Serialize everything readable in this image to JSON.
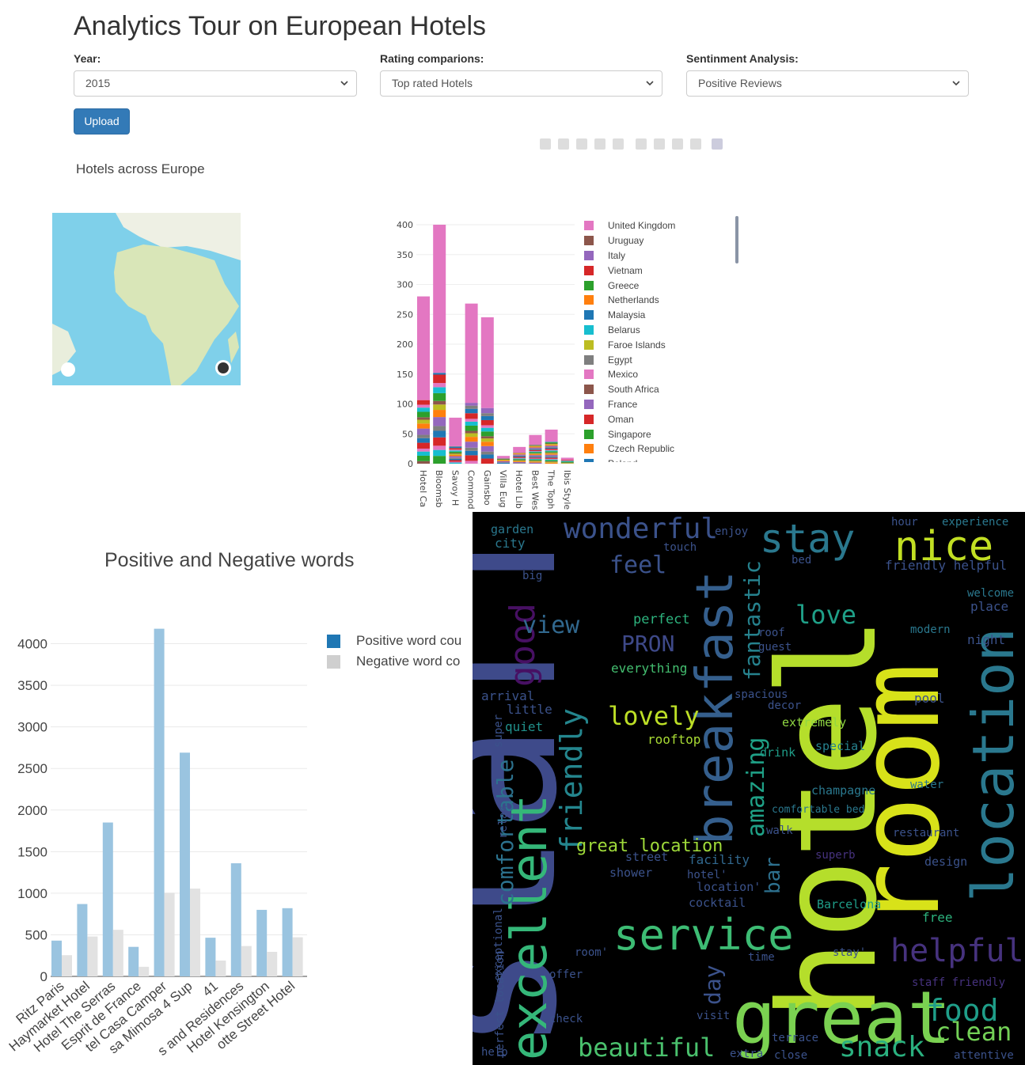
{
  "title": "Analytics Tour on European Hotels",
  "filters": {
    "year": {
      "label": "Year:",
      "value": "2015"
    },
    "rating": {
      "label": "Rating comparions:",
      "value": "Top rated Hotels"
    },
    "sentiment": {
      "label": "Sentinment Analysis:",
      "value": "Positive Reviews"
    }
  },
  "upload_label": "Upload",
  "map_title": "Hotels across Europe",
  "icons": [
    "camera-icon",
    "zoom-icon",
    "pan-icon",
    "box-select-icon",
    "lasso-icon",
    "zoom-in-icon",
    "zoom-out-icon",
    "autoscale-icon",
    "reset-icon",
    "plotly-logo-icon"
  ],
  "colors": {
    "pink": "#e377c2",
    "brown": "#8c564b",
    "purple": "#9467bd",
    "red": "#d62728",
    "green": "#2ca02c",
    "orange": "#ff7f0e",
    "blue": "#1f77b4",
    "cyan": "#17becf",
    "olive": "#bcbd22",
    "gray": "#7f7f7f"
  },
  "chart_data": [
    {
      "type": "bar",
      "stacked": true,
      "categories": [
        "Hotel Ca",
        "Bloomsb",
        "Savoy H",
        "Commod",
        "Gainsbo",
        "Villa Eug",
        "Hotel Lib",
        "Best Wes",
        "The Toph",
        "Ibis Style"
      ],
      "totals": [
        280,
        400,
        77,
        268,
        245,
        13,
        28,
        48,
        57,
        10
      ],
      "ylim": [
        0,
        400
      ],
      "yticks": [
        0,
        50,
        100,
        150,
        200,
        250,
        300,
        350,
        400
      ],
      "legend": [
        "United Kingdom",
        "Uruguay",
        "Italy",
        "Vietnam",
        "Greece",
        "Netherlands",
        "Malaysia",
        "Belarus",
        "Faroe Islands",
        "Egypt",
        "Mexico",
        "South Africa",
        "France",
        "Oman",
        "Singapore",
        "Czech Republic",
        "Poland"
      ]
    },
    {
      "type": "bar",
      "title": "Positive and Negative words",
      "categories": [
        "Ritz Paris",
        "Haymarket Hotel",
        "Hotel The Serras",
        "Esprit de France",
        "tel Casa Camper",
        "sa Mimosa 4 Sup",
        "41",
        "s and Residences",
        "Hotel Kensington",
        "otte Street Hotel"
      ],
      "series": [
        {
          "name": "Positive word cou",
          "color": "#9ac4e0",
          "values": [
            430,
            870,
            1850,
            355,
            4180,
            2690,
            465,
            1360,
            800,
            820
          ]
        },
        {
          "name": "Negative word co",
          "color": "#e2e2e2",
          "values": [
            255,
            480,
            560,
            115,
            1005,
            1055,
            190,
            365,
            295,
            470
          ]
        }
      ],
      "ylim": [
        0,
        4300
      ],
      "yticks": [
        0,
        500,
        1000,
        1500,
        2000,
        2500,
        3000,
        3500,
        4000
      ]
    }
  ],
  "wordcloud": [
    {
      "t": "staff",
      "x": 700,
      "y": 1330,
      "s": 230,
      "c": "#3e4a8a",
      "r": -90
    },
    {
      "t": "hotel",
      "x": 1105,
      "y": 1290,
      "s": 170,
      "c": "#b5de2b",
      "r": -90
    },
    {
      "t": "room",
      "x": 1185,
      "y": 1175,
      "s": 140,
      "c": "#d8e219",
      "r": -90
    },
    {
      "t": "great",
      "x": 925,
      "y": 1318,
      "s": 92,
      "c": "#7ad151",
      "r": 0
    },
    {
      "t": "location",
      "x": 1280,
      "y": 1140,
      "s": 72,
      "c": "#2a788e",
      "r": -90
    },
    {
      "t": "breakfast",
      "x": 925,
      "y": 1068,
      "s": 64,
      "c": "#355f8d",
      "r": -90
    },
    {
      "t": "excellent",
      "x": 690,
      "y": 1340,
      "s": 62,
      "c": "#35b779",
      "r": -90
    },
    {
      "t": "service",
      "x": 775,
      "y": 1200,
      "s": 54,
      "c": "#3dbc74",
      "r": 0
    },
    {
      "t": "nice",
      "x": 1130,
      "y": 708,
      "s": 52,
      "c": "#c2df23",
      "r": 0
    },
    {
      "t": "stay",
      "x": 960,
      "y": 698,
      "s": 50,
      "c": "#2a788e",
      "r": 0
    },
    {
      "t": "helpful",
      "x": 1125,
      "y": 1215,
      "s": 40,
      "c": "#46327e",
      "r": 0
    },
    {
      "t": "good",
      "x": 675,
      "y": 868,
      "s": 44,
      "c": "#471063",
      "r": -90
    },
    {
      "t": "friendly",
      "x": 735,
      "y": 1078,
      "s": 38,
      "c": "#24868e",
      "r": -90
    },
    {
      "t": "wonderful",
      "x": 712,
      "y": 680,
      "s": 36,
      "c": "#3b528b",
      "r": 0
    },
    {
      "t": "amazing",
      "x": 965,
      "y": 1058,
      "s": 30,
      "c": "#1fa187",
      "r": -90
    },
    {
      "t": "fantastic",
      "x": 960,
      "y": 860,
      "s": 28,
      "c": "#26828e",
      "r": -90
    },
    {
      "t": "food",
      "x": 1170,
      "y": 1290,
      "s": 38,
      "c": "#1f9e89",
      "r": 0
    },
    {
      "t": "clean",
      "x": 1182,
      "y": 1315,
      "s": 32,
      "c": "#73d056",
      "r": 0
    },
    {
      "t": "snack",
      "x": 1060,
      "y": 1335,
      "s": 36,
      "c": "#2ab07f",
      "r": 0
    },
    {
      "t": "beautiful",
      "x": 730,
      "y": 1335,
      "s": 32,
      "c": "#4ac16d",
      "r": 0
    },
    {
      "t": "comfortable",
      "x": 648,
      "y": 1145,
      "s": 28,
      "c": "#2c728e",
      "r": -90
    },
    {
      "t": "lovely",
      "x": 768,
      "y": 916,
      "s": 32,
      "c": "#bddf26",
      "r": 0
    },
    {
      "t": "love",
      "x": 1005,
      "y": 788,
      "s": 32,
      "c": "#1fa088",
      "r": 0
    },
    {
      "t": "view",
      "x": 660,
      "y": 800,
      "s": 30,
      "c": "#31688e",
      "r": 0
    },
    {
      "t": "feel",
      "x": 770,
      "y": 724,
      "s": 30,
      "c": "#3b528b",
      "r": 0
    },
    {
      "t": "PRON",
      "x": 785,
      "y": 823,
      "s": 28,
      "c": "#3e4989",
      "r": 0
    },
    {
      "t": "great location",
      "x": 728,
      "y": 1076,
      "s": 22,
      "c": "#9fda3a",
      "r": 0
    },
    {
      "t": "day",
      "x": 910,
      "y": 1270,
      "s": 28,
      "c": "#3b528b",
      "r": -90
    },
    {
      "t": "bar",
      "x": 985,
      "y": 1130,
      "s": 26,
      "c": "#2d708e",
      "r": -90
    },
    {
      "t": "perfect",
      "x": 800,
      "y": 788,
      "s": 17,
      "c": "#2db27d",
      "r": 0
    },
    {
      "t": "everything",
      "x": 772,
      "y": 850,
      "s": 16,
      "c": "#44bf70",
      "r": 0
    },
    {
      "t": "arrival",
      "x": 608,
      "y": 885,
      "s": 16,
      "c": "#3b528b",
      "r": 0
    },
    {
      "t": "little",
      "x": 640,
      "y": 902,
      "s": 16,
      "c": "#3b528b",
      "r": 0
    },
    {
      "t": "quiet",
      "x": 638,
      "y": 924,
      "s": 16,
      "c": "#21918c",
      "r": 0
    },
    {
      "t": "rooftop",
      "x": 818,
      "y": 940,
      "s": 16,
      "c": "#a8db34",
      "r": 0
    },
    {
      "t": "extremely",
      "x": 988,
      "y": 918,
      "s": 15,
      "c": "#90d743",
      "r": 0
    },
    {
      "t": "special",
      "x": 1030,
      "y": 948,
      "s": 15,
      "c": "#26828e",
      "r": 0
    },
    {
      "t": "drink",
      "x": 960,
      "y": 956,
      "s": 15,
      "c": "#1f9e89",
      "r": 0
    },
    {
      "t": "champagne",
      "x": 1025,
      "y": 1004,
      "s": 15,
      "c": "#2a788e",
      "r": 0
    },
    {
      "t": "comfortable bed",
      "x": 975,
      "y": 1027,
      "s": 13,
      "c": "#2a788e",
      "r": 0
    },
    {
      "t": "restaurant",
      "x": 1128,
      "y": 1057,
      "s": 14,
      "c": "#3b528b",
      "r": 0
    },
    {
      "t": "design",
      "x": 1168,
      "y": 1094,
      "s": 15,
      "c": "#3b528b",
      "r": 0
    },
    {
      "t": "facility",
      "x": 870,
      "y": 1092,
      "s": 16,
      "c": "#31688e",
      "r": 0
    },
    {
      "t": "street",
      "x": 790,
      "y": 1088,
      "s": 15,
      "c": "#3b528b",
      "r": 0
    },
    {
      "t": "shower",
      "x": 770,
      "y": 1108,
      "s": 15,
      "c": "#3b528b",
      "r": 0
    },
    {
      "t": "cocktail",
      "x": 870,
      "y": 1146,
      "s": 15,
      "c": "#3b528b",
      "r": 0
    },
    {
      "t": "location'",
      "x": 880,
      "y": 1126,
      "s": 15,
      "c": "#3b528b",
      "r": 0
    },
    {
      "t": "Barcelona",
      "x": 1032,
      "y": 1148,
      "s": 15,
      "c": "#1f9e89",
      "r": 0
    },
    {
      "t": "free",
      "x": 1165,
      "y": 1165,
      "s": 16,
      "c": "#2db27d",
      "r": 0
    },
    {
      "t": "pool",
      "x": 1155,
      "y": 888,
      "s": 16,
      "c": "#3b528b",
      "r": 0
    },
    {
      "t": "water",
      "x": 1150,
      "y": 996,
      "s": 14,
      "c": "#2a788e",
      "r": 0
    },
    {
      "t": "modern",
      "x": 1150,
      "y": 800,
      "s": 14,
      "c": "#2a788e",
      "r": 0
    },
    {
      "t": "night",
      "x": 1222,
      "y": 814,
      "s": 16,
      "c": "#3b528b",
      "r": 0
    },
    {
      "t": "place",
      "x": 1226,
      "y": 772,
      "s": 16,
      "c": "#3b528b",
      "r": 0
    },
    {
      "t": "welcome",
      "x": 1222,
      "y": 754,
      "s": 14,
      "c": "#2a788e",
      "r": 0
    },
    {
      "t": "friendly helpful",
      "x": 1118,
      "y": 720,
      "s": 16,
      "c": "#3b528b",
      "r": 0
    },
    {
      "t": "experience",
      "x": 1190,
      "y": 664,
      "s": 14,
      "c": "#2a788e",
      "r": 0
    },
    {
      "t": "hour",
      "x": 1126,
      "y": 664,
      "s": 14,
      "c": "#3b528b",
      "r": 0
    },
    {
      "t": "bed",
      "x": 1000,
      "y": 712,
      "s": 14,
      "c": "#3b528b",
      "r": 0
    },
    {
      "t": "enjoy",
      "x": 903,
      "y": 676,
      "s": 14,
      "c": "#3b528b",
      "r": 0
    },
    {
      "t": "touch",
      "x": 838,
      "y": 696,
      "s": 14,
      "c": "#3b528b",
      "r": 0
    },
    {
      "t": "city",
      "x": 625,
      "y": 692,
      "s": 16,
      "c": "#2a788e",
      "r": 0
    },
    {
      "t": "garden",
      "x": 620,
      "y": 674,
      "s": 15,
      "c": "#2a788e",
      "r": 0
    },
    {
      "t": "big",
      "x": 660,
      "y": 732,
      "s": 14,
      "c": "#3b528b",
      "r": 0
    },
    {
      "t": "guest",
      "x": 958,
      "y": 822,
      "s": 14,
      "c": "#3b528b",
      "r": 0
    },
    {
      "t": "roof",
      "x": 958,
      "y": 804,
      "s": 14,
      "c": "#3b528b",
      "r": 0
    },
    {
      "t": "spacious",
      "x": 928,
      "y": 882,
      "s": 14,
      "c": "#3b528b",
      "r": 0
    },
    {
      "t": "decor",
      "x": 970,
      "y": 896,
      "s": 14,
      "c": "#3b528b",
      "r": 0
    },
    {
      "t": "walk",
      "x": 968,
      "y": 1054,
      "s": 14,
      "c": "#3b528b",
      "r": 0
    },
    {
      "t": "relax",
      "x": 640,
      "y": 1060,
      "s": 14,
      "c": "#3b528b",
      "r": -90
    },
    {
      "t": "super",
      "x": 634,
      "y": 945,
      "s": 14,
      "c": "#3b528b",
      "r": -90
    },
    {
      "t": "superb",
      "x": 1030,
      "y": 1085,
      "s": 14,
      "c": "#46327e",
      "r": 0
    },
    {
      "t": "hotel'",
      "x": 868,
      "y": 1110,
      "s": 14,
      "c": "#3b528b",
      "r": 0
    },
    {
      "t": "time",
      "x": 945,
      "y": 1214,
      "s": 14,
      "c": "#3b528b",
      "r": 0
    },
    {
      "t": "stay'",
      "x": 1052,
      "y": 1208,
      "s": 14,
      "c": "#3b528b",
      "r": 0
    },
    {
      "t": "staff friendly",
      "x": 1152,
      "y": 1246,
      "s": 14,
      "c": "#46327e",
      "r": 0
    },
    {
      "t": "terrace",
      "x": 975,
      "y": 1316,
      "s": 14,
      "c": "#3b528b",
      "r": 0
    },
    {
      "t": "visit",
      "x": 880,
      "y": 1288,
      "s": 14,
      "c": "#3b528b",
      "r": 0
    },
    {
      "t": "extra",
      "x": 922,
      "y": 1336,
      "s": 14,
      "c": "#3b528b",
      "r": 0
    },
    {
      "t": "close",
      "x": 978,
      "y": 1338,
      "s": 14,
      "c": "#3b528b",
      "r": 0
    },
    {
      "t": "attentive",
      "x": 1205,
      "y": 1338,
      "s": 14,
      "c": "#3b528b",
      "r": 0
    },
    {
      "t": "help",
      "x": 608,
      "y": 1334,
      "s": 14,
      "c": "#3b528b",
      "r": 0
    },
    {
      "t": "check",
      "x": 694,
      "y": 1292,
      "s": 14,
      "c": "#3b528b",
      "r": 0
    },
    {
      "t": "offer",
      "x": 694,
      "y": 1236,
      "s": 14,
      "c": "#3b528b",
      "r": 0
    },
    {
      "t": "room'",
      "x": 726,
      "y": 1208,
      "s": 14,
      "c": "#3b528b",
      "r": 0
    },
    {
      "t": "perfect location",
      "x": 636,
      "y": 1336,
      "s": 14,
      "c": "#3b528b",
      "r": -90
    },
    {
      "t": "exceptional",
      "x": 634,
      "y": 1240,
      "s": 14,
      "c": "#3b528b",
      "r": -90
    }
  ]
}
